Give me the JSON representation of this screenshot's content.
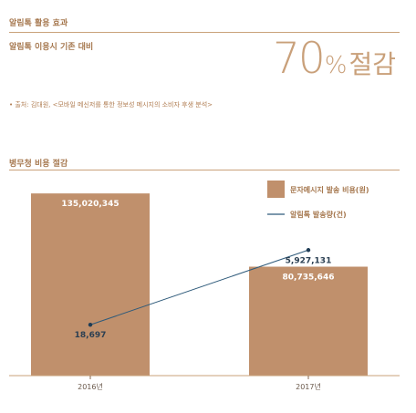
{
  "header": {
    "title": "알림톡 활용 효과",
    "subtitle": "알림톡 이용시 기존 대비",
    "stat_value": "70",
    "stat_percent": "%",
    "stat_unit": "절감",
    "source": "• 출처: 김대원, <모바일 메신저를 통한 정보성 메시지의 소비자 후생 분석>"
  },
  "chart_section": {
    "title": "병무청 비용 절감"
  },
  "colors": {
    "bar": "#c0906c",
    "line": "#2e5a7a",
    "accent": "#a6784f",
    "rule": "#c9a27a"
  },
  "chart_data": {
    "type": "bar",
    "title": "병무청 비용 절감",
    "categories": [
      "2016년",
      "2017년"
    ],
    "series": [
      {
        "name": "문자메시지 발송 비용(원)",
        "type": "bar",
        "axis": "left",
        "values": [
          135020345,
          80735646
        ],
        "labels": [
          "135,020,345",
          "80,735,646"
        ]
      },
      {
        "name": "알림톡 발송량(건)",
        "type": "line",
        "axis": "right",
        "values": [
          18697,
          5927131
        ],
        "labels": [
          "18,697",
          "5,927,131"
        ]
      }
    ],
    "ylim_bar": [
      0,
      150000000
    ],
    "ylim_line": [
      -4000000,
      12000000
    ],
    "legend_position": "top-right",
    "grid": false
  }
}
